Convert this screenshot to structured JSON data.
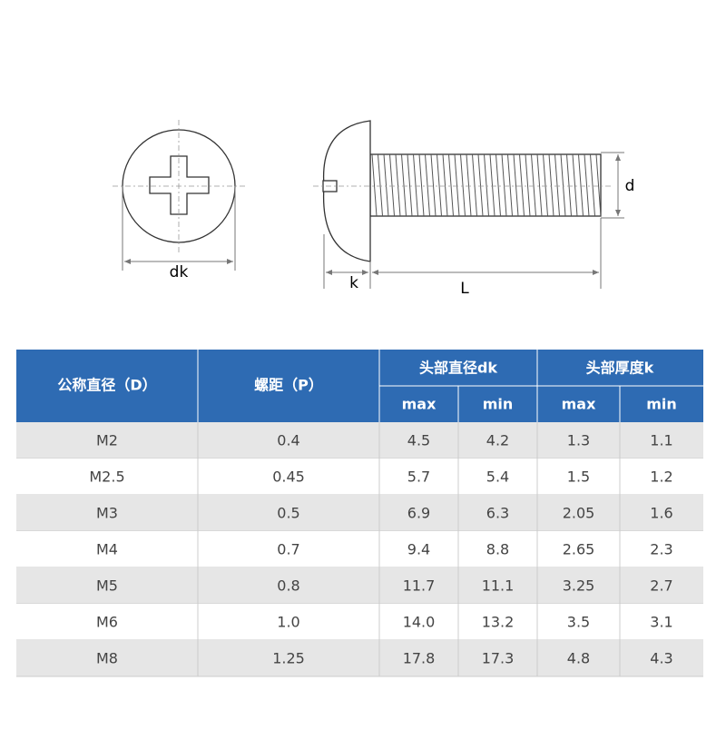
{
  "diagram": {
    "labels": {
      "dk": "dk",
      "k": "k",
      "L": "L",
      "d": "d"
    }
  },
  "table": {
    "header": {
      "nominal": "公称直径（D）",
      "pitch": "螺距（P）",
      "head_diameter": "头部直径dk",
      "head_thickness": "头部厚度k",
      "sub": [
        "max",
        "min",
        "max",
        "min"
      ]
    },
    "rows": [
      [
        "M2",
        "0.4",
        "4.5",
        "4.2",
        "1.3",
        "1.1"
      ],
      [
        "M2.5",
        "0.45",
        "5.7",
        "5.4",
        "1.5",
        "1.2"
      ],
      [
        "M3",
        "0.5",
        "6.9",
        "6.3",
        "2.05",
        "1.6"
      ],
      [
        "M4",
        "0.7",
        "9.4",
        "8.8",
        "2.65",
        "2.3"
      ],
      [
        "M5",
        "0.8",
        "11.7",
        "11.1",
        "3.25",
        "2.7"
      ],
      [
        "M6",
        "1.0",
        "14.0",
        "13.2",
        "3.5",
        "3.1"
      ],
      [
        "M8",
        "1.25",
        "17.8",
        "17.3",
        "4.8",
        "4.3"
      ]
    ]
  }
}
